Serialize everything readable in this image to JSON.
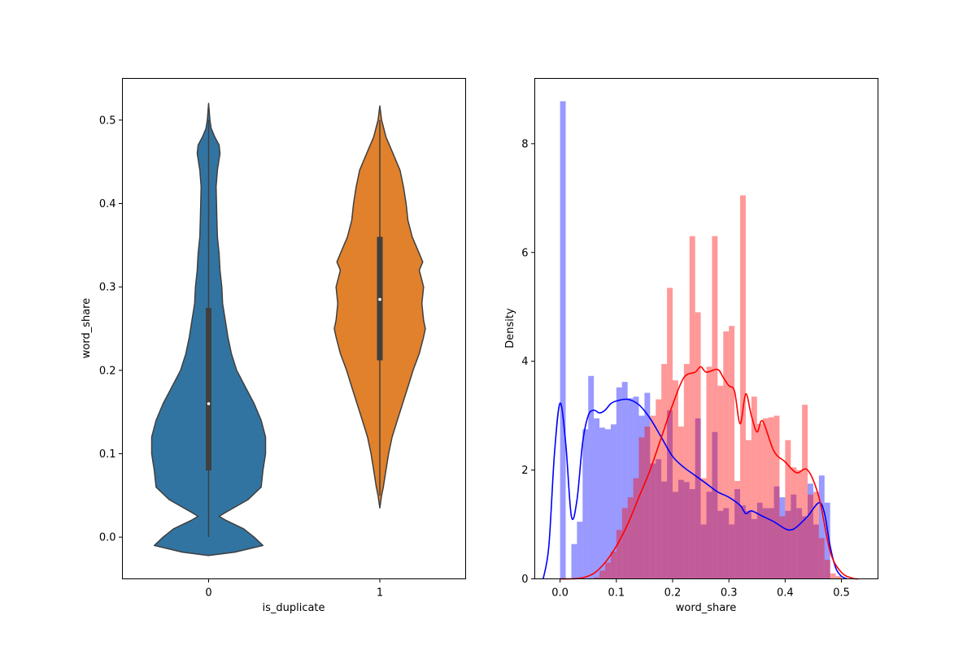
{
  "chart_data": [
    {
      "type": "violin",
      "xlabel": "is_duplicate",
      "ylabel": "word_share",
      "categories": [
        "0",
        "1"
      ],
      "ylim": [
        -0.05,
        0.55
      ],
      "yticks": [
        0.0,
        0.1,
        0.2,
        0.3,
        0.4,
        0.5
      ],
      "ytick_labels": [
        "0.0",
        "0.1",
        "0.2",
        "0.3",
        "0.4",
        "0.5"
      ],
      "colors": [
        "#3274a1",
        "#e1812c"
      ],
      "violins": [
        {
          "category": "0",
          "range": [
            -0.022,
            0.52
          ],
          "median": 0.16,
          "q1": 0.08,
          "q3": 0.275,
          "whisker": [
            0.0,
            0.5
          ],
          "width_profile": [
            [
              -0.022,
              0.0
            ],
            [
              -0.018,
              0.3
            ],
            [
              -0.01,
              0.62
            ],
            [
              0.0,
              0.52
            ],
            [
              0.01,
              0.4
            ],
            [
              0.02,
              0.2
            ],
            [
              0.025,
              0.12
            ],
            [
              0.03,
              0.2
            ],
            [
              0.045,
              0.45
            ],
            [
              0.06,
              0.6
            ],
            [
              0.08,
              0.62
            ],
            [
              0.1,
              0.65
            ],
            [
              0.12,
              0.65
            ],
            [
              0.14,
              0.6
            ],
            [
              0.16,
              0.52
            ],
            [
              0.18,
              0.42
            ],
            [
              0.2,
              0.32
            ],
            [
              0.22,
              0.26
            ],
            [
              0.24,
              0.22
            ],
            [
              0.26,
              0.19
            ],
            [
              0.28,
              0.16
            ],
            [
              0.3,
              0.15
            ],
            [
              0.32,
              0.13
            ],
            [
              0.34,
              0.12
            ],
            [
              0.36,
              0.1
            ],
            [
              0.38,
              0.095
            ],
            [
              0.4,
              0.09
            ],
            [
              0.42,
              0.085
            ],
            [
              0.44,
              0.1
            ],
            [
              0.46,
              0.13
            ],
            [
              0.47,
              0.12
            ],
            [
              0.48,
              0.07
            ],
            [
              0.49,
              0.03
            ],
            [
              0.5,
              0.015
            ],
            [
              0.52,
              0.0
            ]
          ]
        },
        {
          "category": "1",
          "range": [
            0.035,
            0.517
          ],
          "median": 0.285,
          "q1": 0.212,
          "q3": 0.36,
          "whisker": [
            0.05,
            0.5
          ],
          "width_profile": [
            [
              0.035,
              0.0
            ],
            [
              0.05,
              0.02
            ],
            [
              0.06,
              0.04
            ],
            [
              0.08,
              0.07
            ],
            [
              0.1,
              0.1
            ],
            [
              0.12,
              0.14
            ],
            [
              0.14,
              0.2
            ],
            [
              0.16,
              0.26
            ],
            [
              0.18,
              0.32
            ],
            [
              0.2,
              0.38
            ],
            [
              0.22,
              0.45
            ],
            [
              0.24,
              0.5
            ],
            [
              0.25,
              0.52
            ],
            [
              0.26,
              0.5
            ],
            [
              0.28,
              0.48
            ],
            [
              0.3,
              0.5
            ],
            [
              0.32,
              0.45
            ],
            [
              0.33,
              0.49
            ],
            [
              0.34,
              0.45
            ],
            [
              0.36,
              0.37
            ],
            [
              0.38,
              0.32
            ],
            [
              0.4,
              0.3
            ],
            [
              0.42,
              0.27
            ],
            [
              0.44,
              0.23
            ],
            [
              0.46,
              0.15
            ],
            [
              0.48,
              0.07
            ],
            [
              0.5,
              0.02
            ],
            [
              0.517,
              0.0
            ]
          ]
        }
      ]
    },
    {
      "type": "histogram+kde",
      "xlabel": "word_share",
      "ylabel": "Density",
      "xlim": [
        -0.045,
        0.565
      ],
      "ylim": [
        0,
        9.2
      ],
      "xticks": [
        0.0,
        0.1,
        0.2,
        0.3,
        0.4,
        0.5
      ],
      "xtick_labels": [
        "0.0",
        "0.1",
        "0.2",
        "0.3",
        "0.4",
        "0.5"
      ],
      "yticks": [
        0,
        2,
        4,
        6,
        8
      ],
      "ytick_labels": [
        "0",
        "2",
        "4",
        "6",
        "8"
      ],
      "bin_start": 0.0,
      "bin_width": 0.01,
      "series": [
        {
          "color": "#0000ff",
          "hist_alpha": 0.4,
          "hist_values": [
            8.78,
            0.0,
            0.64,
            1.05,
            2.75,
            3.73,
            2.95,
            2.78,
            2.75,
            2.84,
            3.52,
            3.62,
            3.32,
            3.35,
            3.0,
            3.42,
            2.12,
            2.2,
            1.79,
            3.1,
            1.6,
            1.82,
            1.78,
            1.65,
            2.95,
            1.0,
            1.6,
            2.7,
            1.25,
            1.3,
            1.0,
            1.65,
            1.35,
            1.25,
            1.1,
            1.4,
            1.3,
            1.3,
            1.7,
            1.5,
            1.25,
            1.55,
            1.3,
            1.15,
            1.75,
            1.0,
            1.9,
            1.4,
            0.0,
            0.0,
            0.0,
            0.0,
            0.0
          ],
          "kde": [
            [
              -0.03,
              0.0
            ],
            [
              -0.02,
              0.6
            ],
            [
              -0.01,
              2.3
            ],
            [
              0.0,
              3.23
            ],
            [
              0.01,
              2.5
            ],
            [
              0.02,
              1.15
            ],
            [
              0.03,
              1.45
            ],
            [
              0.04,
              2.5
            ],
            [
              0.05,
              3.0
            ],
            [
              0.06,
              3.1
            ],
            [
              0.07,
              3.05
            ],
            [
              0.08,
              3.1
            ],
            [
              0.09,
              3.22
            ],
            [
              0.1,
              3.27
            ],
            [
              0.12,
              3.3
            ],
            [
              0.14,
              3.2
            ],
            [
              0.16,
              2.95
            ],
            [
              0.18,
              2.6
            ],
            [
              0.2,
              2.25
            ],
            [
              0.22,
              2.05
            ],
            [
              0.24,
              1.9
            ],
            [
              0.26,
              1.75
            ],
            [
              0.28,
              1.6
            ],
            [
              0.3,
              1.5
            ],
            [
              0.32,
              1.35
            ],
            [
              0.33,
              1.2
            ],
            [
              0.34,
              1.25
            ],
            [
              0.36,
              1.15
            ],
            [
              0.38,
              1.05
            ],
            [
              0.4,
              0.92
            ],
            [
              0.41,
              0.9
            ],
            [
              0.42,
              0.95
            ],
            [
              0.44,
              1.15
            ],
            [
              0.46,
              1.4
            ],
            [
              0.47,
              1.2
            ],
            [
              0.48,
              0.6
            ],
            [
              0.49,
              0.2
            ],
            [
              0.5,
              0.05
            ],
            [
              0.51,
              0.0
            ]
          ]
        },
        {
          "color": "#ff0000",
          "hist_alpha": 0.4,
          "hist_values": [
            0.0,
            0.0,
            0.0,
            0.0,
            0.0,
            0.0,
            0.03,
            0.15,
            0.3,
            0.5,
            0.9,
            1.3,
            1.5,
            1.85,
            2.6,
            2.8,
            3.0,
            3.3,
            3.95,
            5.35,
            3.65,
            2.8,
            3.95,
            6.3,
            4.9,
            1.85,
            3.9,
            6.3,
            3.55,
            4.55,
            4.65,
            1.8,
            7.05,
            2.55,
            3.35,
            2.85,
            2.95,
            2.97,
            3.0,
            1.15,
            2.55,
            2.05,
            2.0,
            3.2,
            1.55,
            1.6,
            0.75,
            0.35,
            0.1,
            0.05,
            0.0,
            0.0,
            0.0
          ],
          "kde": [
            [
              0.0,
              0.0
            ],
            [
              0.02,
              0.0
            ],
            [
              0.04,
              0.02
            ],
            [
              0.06,
              0.1
            ],
            [
              0.08,
              0.3
            ],
            [
              0.1,
              0.6
            ],
            [
              0.12,
              1.0
            ],
            [
              0.14,
              1.5
            ],
            [
              0.16,
              2.0
            ],
            [
              0.18,
              2.6
            ],
            [
              0.2,
              3.2
            ],
            [
              0.22,
              3.7
            ],
            [
              0.24,
              3.8
            ],
            [
              0.25,
              3.9
            ],
            [
              0.26,
              3.8
            ],
            [
              0.28,
              3.85
            ],
            [
              0.29,
              3.7
            ],
            [
              0.3,
              3.55
            ],
            [
              0.31,
              3.45
            ],
            [
              0.32,
              2.85
            ],
            [
              0.33,
              3.4
            ],
            [
              0.34,
              3.0
            ],
            [
              0.35,
              2.7
            ],
            [
              0.36,
              2.9
            ],
            [
              0.38,
              2.35
            ],
            [
              0.4,
              2.15
            ],
            [
              0.42,
              1.95
            ],
            [
              0.44,
              2.0
            ],
            [
              0.46,
              1.5
            ],
            [
              0.48,
              0.5
            ],
            [
              0.5,
              0.12
            ],
            [
              0.52,
              0.01
            ],
            [
              0.53,
              0.0
            ]
          ]
        }
      ]
    }
  ]
}
